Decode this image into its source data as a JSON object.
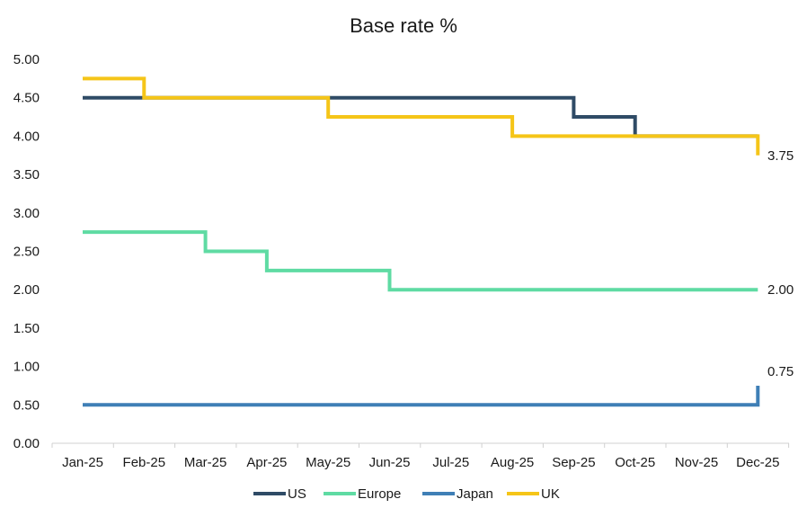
{
  "chart_data": {
    "type": "line",
    "title": "Base rate %",
    "xlabel": "",
    "ylabel": "",
    "categories": [
      "Jan-25",
      "Feb-25",
      "Mar-25",
      "Apr-25",
      "May-25",
      "Jun-25",
      "Jul-25",
      "Aug-25",
      "Sep-25",
      "Oct-25",
      "Nov-25",
      "Dec-25"
    ],
    "ylim": [
      0,
      5
    ],
    "yticks": [
      "0.00",
      "0.50",
      "1.00",
      "1.50",
      "2.00",
      "2.50",
      "3.00",
      "3.50",
      "4.00",
      "4.50",
      "5.00"
    ],
    "grid": false,
    "legend_position": "bottom",
    "step": true,
    "series": [
      {
        "name": "US",
        "color": "#2f4b66",
        "points": [
          [
            0,
            4.5
          ],
          [
            8,
            4.25
          ],
          [
            9,
            4.0
          ],
          [
            11,
            4.0
          ]
        ]
      },
      {
        "name": "Europe",
        "color": "#5fdba3",
        "points": [
          [
            0,
            2.75
          ],
          [
            2,
            2.5
          ],
          [
            3,
            2.25
          ],
          [
            5,
            2.0
          ],
          [
            11,
            2.0
          ]
        ],
        "end_label": "2.00"
      },
      {
        "name": "Japan",
        "color": "#3f7fb6",
        "points": [
          [
            0,
            0.5
          ],
          [
            11,
            0.5
          ],
          [
            11,
            0.75
          ]
        ],
        "end_label": "0.75"
      },
      {
        "name": "UK",
        "color": "#f5c518",
        "points": [
          [
            0,
            4.75
          ],
          [
            1,
            4.5
          ],
          [
            4,
            4.25
          ],
          [
            7,
            4.0
          ],
          [
            11,
            4.0
          ],
          [
            11,
            3.75
          ]
        ],
        "end_label": "3.75"
      }
    ]
  }
}
